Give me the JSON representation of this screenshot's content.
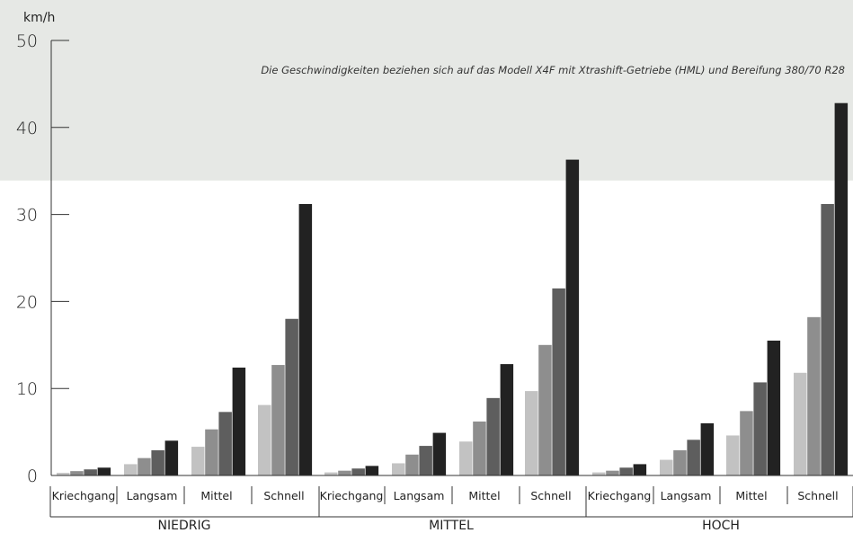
{
  "chart_data": {
    "type": "bar",
    "ylabel": "km/h",
    "ylim": [
      0,
      50
    ],
    "yticks": [
      0,
      10,
      20,
      30,
      40,
      50
    ],
    "annotation": "Die Geschwindigkeiten beziehen sich auf das Modell X4F mit Xtrashift-Getriebe (HML) und Bereifung 380/70 R28",
    "highlight_band": [
      33.9,
      50
    ],
    "groups": [
      {
        "label": "NIEDRIG",
        "categories": [
          {
            "label": "Kriechgang",
            "values": [
              0.3,
              0.5,
              0.7,
              0.9
            ]
          },
          {
            "label": "Langsam",
            "values": [
              1.3,
              2.0,
              2.9,
              4.0
            ]
          },
          {
            "label": "Mittel",
            "values": [
              3.3,
              5.3,
              7.3,
              12.4
            ]
          },
          {
            "label": "Schnell",
            "values": [
              8.1,
              12.7,
              18.0,
              31.2
            ]
          }
        ]
      },
      {
        "label": "MITTEL",
        "categories": [
          {
            "label": "Kriechgang",
            "values": [
              0.35,
              0.55,
              0.8,
              1.1
            ]
          },
          {
            "label": "Langsam",
            "values": [
              1.4,
              2.4,
              3.4,
              4.9
            ]
          },
          {
            "label": "Mittel",
            "values": [
              3.9,
              6.2,
              8.9,
              12.8
            ]
          },
          {
            "label": "Schnell",
            "values": [
              9.7,
              15.0,
              21.5,
              36.3
            ]
          }
        ]
      },
      {
        "label": "HOCH",
        "categories": [
          {
            "label": "Kriechgang",
            "values": [
              0.35,
              0.55,
              0.9,
              1.3
            ]
          },
          {
            "label": "Langsam",
            "values": [
              1.8,
              2.9,
              4.1,
              6.0
            ]
          },
          {
            "label": "Mittel",
            "values": [
              4.6,
              7.4,
              10.7,
              15.5
            ]
          },
          {
            "label": "Schnell",
            "values": [
              11.8,
              18.2,
              31.2,
              42.8
            ]
          }
        ]
      }
    ],
    "colors": {
      "bars": [
        "#c2c2c2",
        "#8e8e8e",
        "#5e5e5e",
        "#222222"
      ],
      "band": "#e6e8e5",
      "axis": "#333333"
    }
  }
}
